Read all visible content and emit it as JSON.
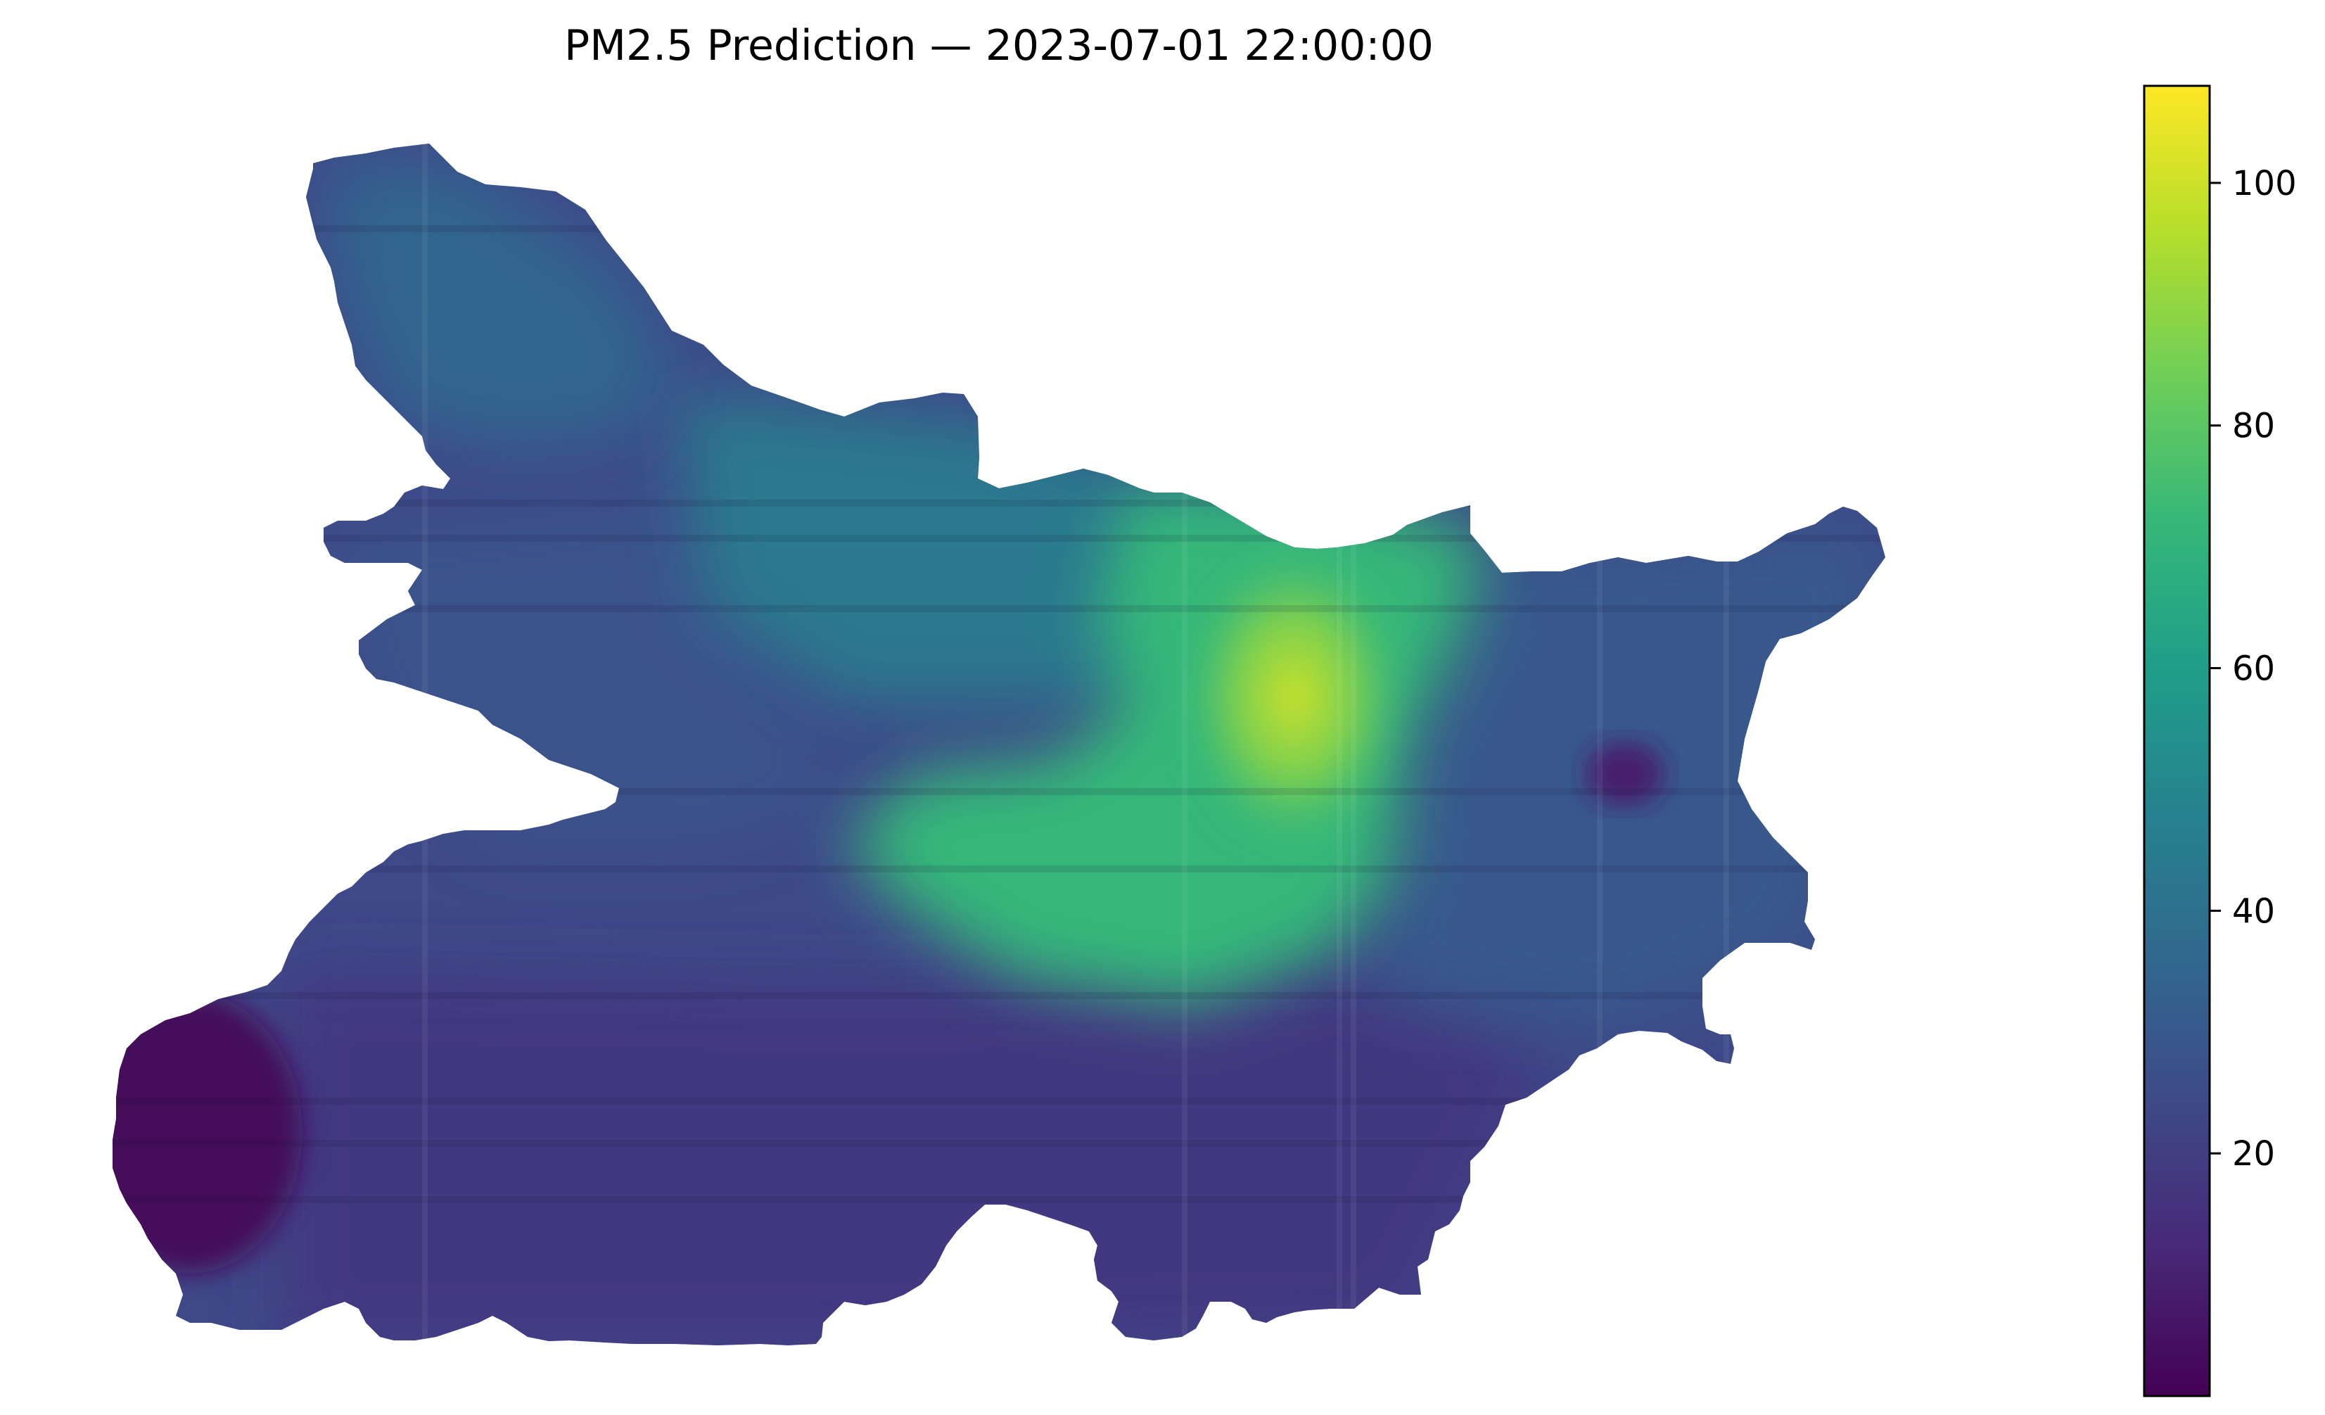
{
  "chart_data": {
    "type": "heatmap",
    "title": "PM2.5 Prediction — 2023-07-01 22:00:00",
    "axes_visible": false,
    "colormap": "viridis",
    "colormap_stops": [
      "#440154",
      "#482878",
      "#3e4989",
      "#31688e",
      "#26828e",
      "#1f9e89",
      "#35b779",
      "#6ece58",
      "#b5de2b",
      "#fde725"
    ],
    "value_range": [
      0,
      108
    ],
    "colorbar": {
      "position": "right",
      "ticks": [
        20,
        40,
        60,
        80,
        100
      ],
      "tick_labels": [
        "20",
        "40",
        "60",
        "80",
        "100"
      ]
    },
    "regions": [
      {
        "name": "south-west hotspot low",
        "value": 2
      },
      {
        "name": "western plains",
        "value": 28
      },
      {
        "name": "southern belt",
        "value": 18
      },
      {
        "name": "north-west arm",
        "value": 35
      },
      {
        "name": "north-central band",
        "value": 44
      },
      {
        "name": "central high-concentration zone",
        "value": 72
      },
      {
        "name": "central peak",
        "value": 100
      },
      {
        "name": "eastern region",
        "value": 30
      },
      {
        "name": "far east low spot",
        "value": 8
      }
    ]
  }
}
